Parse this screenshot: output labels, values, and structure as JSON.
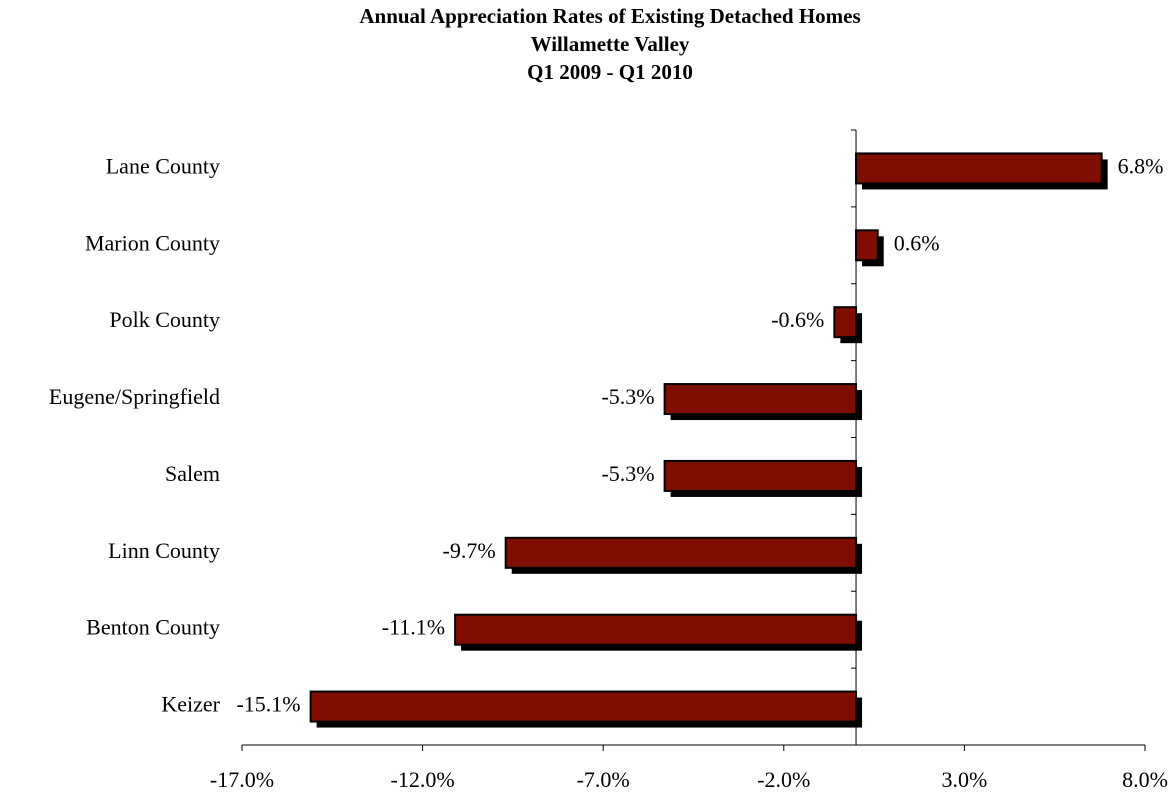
{
  "chart_data": {
    "type": "hbar",
    "title": "Annual Appreciation Rates of Existing Detached Homes",
    "subtitle": [
      "Willamette Valley",
      "Q1 2009 - Q1 2010"
    ],
    "categories": [
      "Lane County",
      "Marion County",
      "Polk County",
      "Eugene/Springfield",
      "Salem",
      "Linn County",
      "Benton County",
      "Keizer"
    ],
    "values": [
      6.8,
      0.6,
      -0.6,
      -5.3,
      -5.3,
      -9.7,
      -11.1,
      -15.1
    ],
    "value_labels": [
      "6.8%",
      "0.6%",
      "-0.6%",
      "-5.3%",
      "-5.3%",
      "-9.7%",
      "-11.1%",
      "-15.1%"
    ],
    "color": "#7f0e00",
    "xlim": [
      -17,
      8
    ],
    "xticks": [
      {
        "value": -17,
        "label": "-17.0%"
      },
      {
        "value": -12,
        "label": "-12.0%"
      },
      {
        "value": -7,
        "label": "-7.0%"
      },
      {
        "value": -2,
        "label": "-2.0%"
      },
      {
        "value": 3,
        "label": "3.0%"
      },
      {
        "value": 8,
        "label": "8.0%"
      }
    ]
  }
}
